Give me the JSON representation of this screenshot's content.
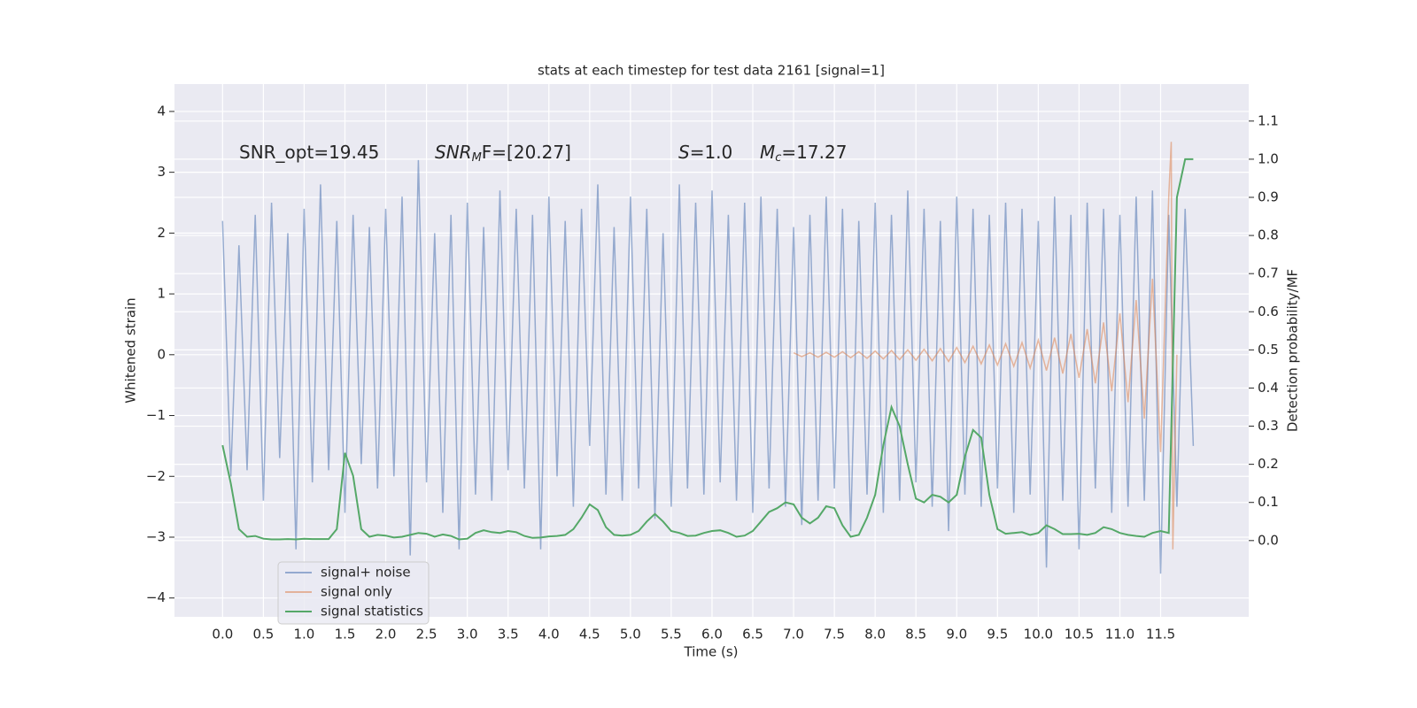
{
  "chart_data": {
    "type": "line",
    "title": "stats at each timestep for test data 2161 [signal=1]",
    "xlabel": "Time (s)",
    "ylabel": "Whitened strain",
    "y2label": "Detection probability/MF",
    "annotations": [
      [
        "SNR_opt=19.45"
      ],
      [
        "SNR",
        "M",
        "F=[20.27]"
      ],
      [
        "S",
        "=1.0"
      ],
      [
        "M",
        "c",
        "=17.27"
      ]
    ],
    "x": [
      0.0,
      0.1,
      0.2,
      0.3,
      0.4,
      0.5,
      0.6,
      0.7,
      0.8,
      0.9,
      1.0,
      1.1,
      1.2,
      1.3,
      1.4,
      1.5,
      1.6,
      1.7,
      1.8,
      1.9,
      2.0,
      2.1,
      2.2,
      2.3,
      2.4,
      2.5,
      2.6,
      2.7,
      2.8,
      2.9,
      3.0,
      3.1,
      3.2,
      3.3,
      3.4,
      3.5,
      3.6,
      3.7,
      3.8,
      3.9,
      4.0,
      4.1,
      4.2,
      4.3,
      4.4,
      4.5,
      4.6,
      4.7,
      4.8,
      4.9,
      5.0,
      5.1,
      5.2,
      5.3,
      5.4,
      5.5,
      5.6,
      5.7,
      5.8,
      5.9,
      6.0,
      6.1,
      6.2,
      6.3,
      6.4,
      6.5,
      6.6,
      6.7,
      6.8,
      6.9,
      7.0,
      7.1,
      7.2,
      7.3,
      7.4,
      7.5,
      7.6,
      7.7,
      7.8,
      7.9,
      8.0,
      8.1,
      8.2,
      8.3,
      8.4,
      8.5,
      8.6,
      8.7,
      8.8,
      8.9,
      9.0,
      9.1,
      9.2,
      9.3,
      9.4,
      9.5,
      9.6,
      9.7,
      9.8,
      9.9,
      10.0,
      10.1,
      10.2,
      10.3,
      10.4,
      10.5,
      10.6,
      10.7,
      10.8,
      10.9,
      11.0,
      11.1,
      11.2,
      11.3,
      11.4,
      11.5,
      11.6,
      11.7,
      11.8,
      11.9
    ],
    "series": [
      {
        "name": "signal+ noise",
        "color": "#4c72b0",
        "axis": "y",
        "values": [
          2.2,
          -2.0,
          1.8,
          -1.9,
          2.3,
          -2.4,
          2.5,
          -1.7,
          2.0,
          -3.2,
          2.4,
          -2.1,
          2.8,
          -1.9,
          2.2,
          -2.6,
          2.3,
          -1.8,
          2.1,
          -2.2,
          2.4,
          -2.0,
          2.6,
          -3.3,
          3.2,
          -2.1,
          2.0,
          -2.6,
          2.3,
          -3.2,
          2.5,
          -2.3,
          2.1,
          -2.4,
          2.7,
          -1.9,
          2.4,
          -2.2,
          2.3,
          -3.2,
          2.6,
          -2.0,
          2.2,
          -2.5,
          2.4,
          -1.5,
          2.8,
          -2.3,
          2.1,
          -2.4,
          2.6,
          -2.2,
          2.4,
          -2.7,
          2.0,
          -2.5,
          2.8,
          -2.2,
          2.5,
          -2.3,
          2.7,
          -2.1,
          2.3,
          -2.4,
          2.5,
          -2.6,
          2.6,
          -2.2,
          2.4,
          -2.5,
          2.1,
          -2.8,
          2.3,
          -2.4,
          2.6,
          -2.2,
          2.4,
          -2.9,
          2.2,
          -2.3,
          2.5,
          -2.6,
          2.3,
          -2.4,
          2.7,
          -2.1,
          2.4,
          -2.5,
          2.2,
          -2.9,
          2.6,
          -2.3,
          2.4,
          -2.5,
          2.3,
          -2.2,
          2.5,
          -2.6,
          2.4,
          -2.3,
          2.2,
          -3.5,
          2.6,
          -2.4,
          2.3,
          -3.2,
          2.5,
          -2.2,
          2.4,
          -2.6,
          2.3,
          -2.5,
          2.6,
          -2.4,
          2.7,
          -3.6,
          2.3,
          -2.5,
          2.4,
          -1.5
        ]
      },
      {
        "name": "signal only",
        "color": "#dd8452",
        "axis": "y",
        "x": [
          7.0,
          7.1,
          7.2,
          7.3,
          7.4,
          7.5,
          7.6,
          7.7,
          7.8,
          7.9,
          8.0,
          8.1,
          8.2,
          8.3,
          8.4,
          8.5,
          8.6,
          8.7,
          8.8,
          8.9,
          9.0,
          9.1,
          9.2,
          9.3,
          9.4,
          9.5,
          9.6,
          9.7,
          9.8,
          9.9,
          10.0,
          10.1,
          10.2,
          10.3,
          10.4,
          10.5,
          10.6,
          10.7,
          10.8,
          10.9,
          11.0,
          11.1,
          11.2,
          11.3,
          11.4,
          11.5,
          11.6,
          11.63,
          11.65,
          11.7
        ],
        "values": [
          0.03,
          -0.03,
          0.03,
          -0.04,
          0.04,
          -0.04,
          0.05,
          -0.05,
          0.05,
          -0.06,
          0.06,
          -0.07,
          0.07,
          -0.08,
          0.08,
          -0.09,
          0.09,
          -0.1,
          0.1,
          -0.11,
          0.12,
          -0.13,
          0.14,
          -0.15,
          0.16,
          -0.17,
          0.18,
          -0.19,
          0.2,
          -0.22,
          0.24,
          -0.26,
          0.28,
          -0.31,
          0.34,
          -0.38,
          0.42,
          -0.47,
          0.53,
          -0.6,
          0.68,
          -0.78,
          0.9,
          -1.05,
          1.25,
          -1.6,
          2.6,
          3.5,
          -3.2,
          0.0
        ]
      },
      {
        "name": "signal statistics",
        "color": "#55a868",
        "axis": "y2",
        "values": [
          0.25,
          0.15,
          0.03,
          0.01,
          0.012,
          0.005,
          0.003,
          0.003,
          0.004,
          0.003,
          0.005,
          0.004,
          0.004,
          0.004,
          0.03,
          0.23,
          0.17,
          0.03,
          0.01,
          0.015,
          0.013,
          0.008,
          0.01,
          0.015,
          0.02,
          0.018,
          0.01,
          0.016,
          0.012,
          0.003,
          0.005,
          0.02,
          0.027,
          0.022,
          0.02,
          0.025,
          0.022,
          0.012,
          0.007,
          0.008,
          0.011,
          0.012,
          0.015,
          0.03,
          0.06,
          0.095,
          0.08,
          0.035,
          0.015,
          0.013,
          0.015,
          0.025,
          0.05,
          0.07,
          0.05,
          0.025,
          0.02,
          0.012,
          0.013,
          0.02,
          0.025,
          0.027,
          0.02,
          0.01,
          0.013,
          0.025,
          0.05,
          0.075,
          0.085,
          0.1,
          0.095,
          0.06,
          0.045,
          0.06,
          0.09,
          0.085,
          0.04,
          0.01,
          0.015,
          0.06,
          0.12,
          0.25,
          0.35,
          0.3,
          0.2,
          0.11,
          0.1,
          0.12,
          0.115,
          0.1,
          0.12,
          0.22,
          0.29,
          0.27,
          0.12,
          0.03,
          0.018,
          0.02,
          0.022,
          0.015,
          0.02,
          0.04,
          0.03,
          0.017,
          0.017,
          0.018,
          0.015,
          0.02,
          0.035,
          0.03,
          0.02,
          0.015,
          0.012,
          0.01,
          0.02,
          0.025,
          0.02,
          0.9,
          1.0,
          1.0
        ]
      }
    ],
    "xlim": [
      -0.59,
      12.58
    ],
    "ylim": [
      -4.31,
      4.45
    ],
    "y2lim": [
      -0.2,
      1.197
    ],
    "xticks": [
      {
        "value": 0,
        "label": "0.0"
      },
      0.5,
      {
        "value": 1,
        "label": "1.0"
      },
      1.5,
      {
        "value": 2,
        "label": "2.0"
      },
      2.5,
      {
        "value": 3,
        "label": "3.0"
      },
      3.5,
      {
        "value": 4,
        "label": "4.0"
      },
      4.5,
      {
        "value": 5,
        "label": "5.0"
      },
      5.5,
      {
        "value": 6,
        "label": "6.0"
      },
      6.5,
      {
        "value": 7,
        "label": "7.0"
      },
      7.5,
      {
        "value": 8,
        "label": "8.0"
      },
      8.5,
      {
        "value": 9,
        "label": "9.0"
      },
      9.5,
      {
        "value": 10,
        "label": "10.0"
      },
      10.5,
      {
        "value": 11,
        "label": "11.0"
      },
      11.5
    ],
    "yticks": [
      {
        "value": -4,
        "label": "−4"
      },
      {
        "value": -3,
        "label": "−3"
      },
      {
        "value": -2,
        "label": "−2"
      },
      {
        "value": -1,
        "label": "−1"
      },
      0,
      1,
      2,
      3,
      4
    ],
    "y2ticks": [
      {
        "value": 0,
        "label": "0.0"
      },
      0.1,
      0.2,
      0.3,
      0.4,
      0.5,
      0.6,
      0.7,
      0.8,
      0.9,
      {
        "value": 1,
        "label": "1.0"
      },
      1.1
    ],
    "grid": true,
    "legend": "lower left"
  }
}
